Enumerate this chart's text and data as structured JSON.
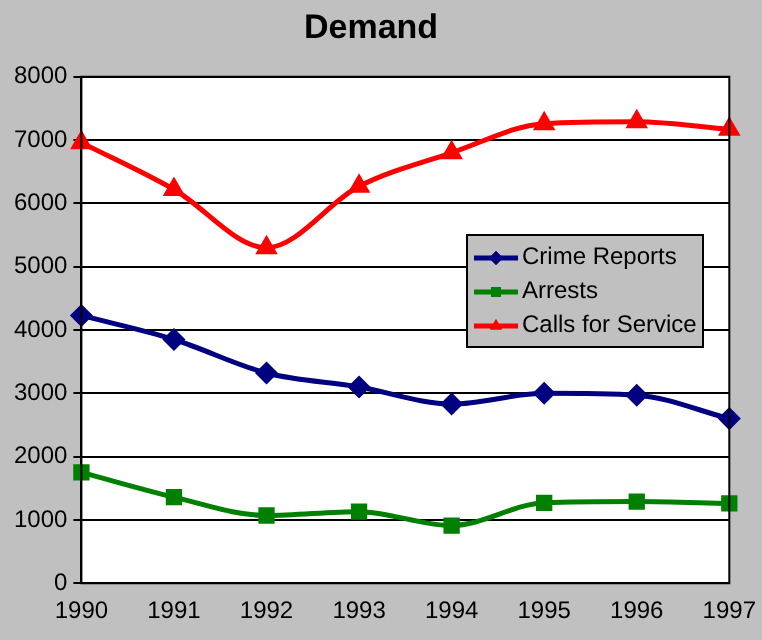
{
  "chart_data": {
    "type": "line",
    "title": "Demand",
    "categories": [
      "1990",
      "1991",
      "1992",
      "1993",
      "1994",
      "1995",
      "1996",
      "1997"
    ],
    "series": [
      {
        "name": "Crime Reports",
        "color": "#000080",
        "marker": "diamond",
        "values": [
          4230,
          3850,
          3320,
          3100,
          2830,
          3000,
          2970,
          2600
        ]
      },
      {
        "name": "Arrests",
        "color": "#008000",
        "marker": "square",
        "values": [
          1750,
          1360,
          1070,
          1130,
          910,
          1270,
          1290,
          1260
        ]
      },
      {
        "name": "Calls for Service",
        "color": "#ff0000",
        "marker": "triangle",
        "values": [
          6960,
          6220,
          5300,
          6270,
          6800,
          7260,
          7290,
          7170
        ]
      }
    ],
    "ylim": [
      0,
      8000
    ],
    "yticks": [
      0,
      1000,
      2000,
      3000,
      4000,
      5000,
      6000,
      7000,
      8000
    ],
    "grid": "y",
    "legend": "right",
    "line_style": "solid"
  }
}
